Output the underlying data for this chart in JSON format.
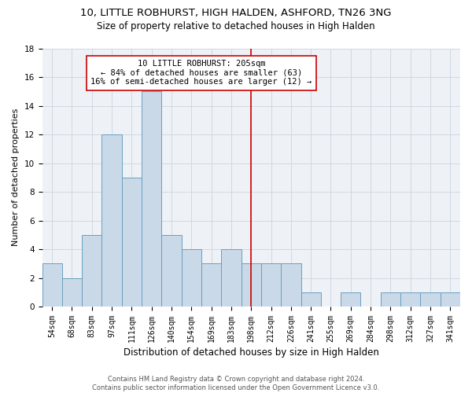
{
  "title_line1": "10, LITTLE ROBHURST, HIGH HALDEN, ASHFORD, TN26 3NG",
  "title_line2": "Size of property relative to detached houses in High Halden",
  "xlabel": "Distribution of detached houses by size in High Halden",
  "ylabel": "Number of detached properties",
  "footnote": "Contains HM Land Registry data © Crown copyright and database right 2024.\nContains public sector information licensed under the Open Government Licence v3.0.",
  "bin_labels": [
    "54sqm",
    "68sqm",
    "83sqm",
    "97sqm",
    "111sqm",
    "126sqm",
    "140sqm",
    "154sqm",
    "169sqm",
    "183sqm",
    "198sqm",
    "212sqm",
    "226sqm",
    "241sqm",
    "255sqm",
    "269sqm",
    "284sqm",
    "298sqm",
    "312sqm",
    "327sqm",
    "341sqm"
  ],
  "bar_values": [
    3,
    2,
    5,
    12,
    9,
    15,
    5,
    4,
    3,
    4,
    3,
    3,
    3,
    1,
    0,
    1,
    0,
    1,
    1,
    1,
    1
  ],
  "bar_color": "#c9d9e8",
  "bar_edge_color": "#6a9fc0",
  "property_bin_index": 10,
  "vline_color": "#cc0000",
  "annotation_text": "10 LITTLE ROBHURST: 205sqm\n← 84% of detached houses are smaller (63)\n16% of semi-detached houses are larger (12) →",
  "annotation_box_color": "#cc0000",
  "ylim": [
    0,
    18
  ],
  "yticks": [
    0,
    2,
    4,
    6,
    8,
    10,
    12,
    14,
    16,
    18
  ],
  "grid_color": "#d0d8e0",
  "bg_color": "#eef2f7",
  "title1_fontsize": 9.5,
  "title2_fontsize": 8.5,
  "xlabel_fontsize": 8.5,
  "ylabel_fontsize": 8,
  "tick_fontsize": 7,
  "annotation_fontsize": 7.5,
  "footnote_fontsize": 6
}
